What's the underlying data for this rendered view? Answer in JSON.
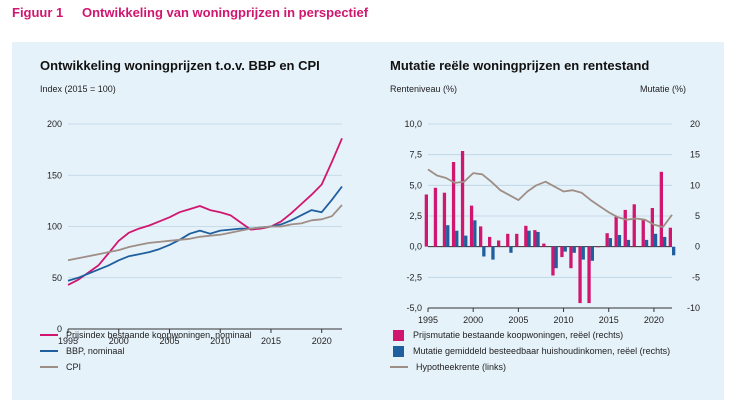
{
  "figure": {
    "number": "Figuur 1",
    "title": "Ontwikkeling van woningprijzen in perspectief"
  },
  "colors": {
    "magenta": "#d0166f",
    "blue": "#1f5f9e",
    "grey": "#9e8e86",
    "panel_bg": "#e6f2fa"
  },
  "chart_data": [
    {
      "type": "line",
      "title": "Ontwikkeling woningprijzen t.o.v. BBP en CPI",
      "ylabel": "Index (2015 = 100)",
      "xlabel": "",
      "xlim": [
        1995,
        2022
      ],
      "ylim": [
        0,
        200
      ],
      "x_ticks": [
        1995,
        2000,
        2005,
        2010,
        2015,
        2020
      ],
      "y_ticks": [
        0,
        50,
        100,
        150,
        200
      ],
      "grid": "horizontal",
      "legend_position": "bottom",
      "x": [
        1995,
        1996,
        1997,
        1998,
        1999,
        2000,
        2001,
        2002,
        2003,
        2004,
        2005,
        2006,
        2007,
        2008,
        2009,
        2010,
        2011,
        2012,
        2013,
        2014,
        2015,
        2016,
        2017,
        2018,
        2019,
        2020,
        2021,
        2022
      ],
      "series": [
        {
          "name": "Prijsindex bestaande koopwoningen, nominaal",
          "color": "#d0166f",
          "values": [
            43,
            48,
            55,
            62,
            74,
            86,
            94,
            98,
            101,
            105,
            109,
            114,
            117,
            120,
            116,
            114,
            111,
            104,
            97,
            98,
            100,
            105,
            113,
            122,
            131,
            141,
            163,
            186
          ]
        },
        {
          "name": "BBP, nominaal",
          "color": "#1f5f9e",
          "values": [
            47,
            50,
            54,
            58,
            62,
            67,
            71,
            73,
            75,
            78,
            82,
            87,
            93,
            96,
            93,
            96,
            97,
            98,
            98,
            99,
            100,
            102,
            106,
            111,
            116,
            114,
            126,
            139
          ]
        },
        {
          "name": "CPI",
          "color": "#9e8e86",
          "values": [
            67,
            69,
            71,
            73,
            75,
            77,
            80,
            82,
            84,
            85,
            86,
            87,
            88,
            90,
            91,
            92,
            94,
            96,
            98,
            99,
            100,
            100,
            102,
            103,
            106,
            107,
            110,
            121
          ]
        }
      ]
    },
    {
      "type": "bar",
      "title": "Mutatie reële woningprijzen en rentestand",
      "ylabel": "Renteniveau (%)",
      "y2label": "Mutatie (%)",
      "xlabel": "",
      "xlim": [
        1995,
        2022
      ],
      "ylim": [
        -5,
        10
      ],
      "y2lim": [
        -10,
        20
      ],
      "x_ticks": [
        1995,
        2000,
        2005,
        2010,
        2015,
        2020
      ],
      "y_ticks": [
        "-5,0",
        "-2,5",
        "0,0",
        "2,5",
        "5,0",
        "7,5",
        "10,0"
      ],
      "y2_ticks": [
        "-10",
        "-5",
        "0",
        "5",
        "10",
        "15",
        "20"
      ],
      "grid": "horizontal",
      "legend_position": "bottom",
      "x": [
        1995,
        1996,
        1997,
        1998,
        1999,
        2000,
        2001,
        2002,
        2003,
        2004,
        2005,
        2006,
        2007,
        2008,
        2009,
        2010,
        2011,
        2012,
        2013,
        2014,
        2015,
        2016,
        2017,
        2018,
        2019,
        2020,
        2021,
        2022
      ],
      "series": [
        {
          "name": "Prijsmutatie bestaande koopwoningen, reëel (rechts)",
          "color": "#d0166f",
          "axis": "right",
          "kind": "bar",
          "values": [
            8.5,
            9.6,
            8.8,
            13.8,
            15.6,
            6.7,
            3.3,
            1.6,
            1.0,
            2.1,
            2.1,
            3.4,
            2.7,
            0.5,
            -4.7,
            -1.7,
            -3.5,
            -9.2,
            -9.2,
            -0.1,
            2.2,
            4.9,
            6.0,
            6.9,
            4.4,
            6.3,
            12.2,
            3.1
          ]
        },
        {
          "name": "Mutatie gemiddeld besteedbaar huishoudinkomen, reëel (rechts)",
          "color": "#1f5f9e",
          "axis": "right",
          "kind": "bar",
          "values": [
            0,
            0,
            3.5,
            2.6,
            1.8,
            4.3,
            -1.6,
            -2.1,
            0,
            -1.0,
            0,
            2.6,
            2.4,
            0,
            -3.5,
            -0.8,
            -1.0,
            -2.1,
            -2.3,
            0,
            1.4,
            1.9,
            1.1,
            0,
            1.1,
            2.1,
            1.6,
            -1.4
          ]
        },
        {
          "name": "Hypotheekrente (links)",
          "color": "#9e8e86",
          "axis": "left",
          "kind": "line",
          "values": [
            6.3,
            5.8,
            5.6,
            5.2,
            5.3,
            6.0,
            5.9,
            5.3,
            4.6,
            4.2,
            3.8,
            4.5,
            5.0,
            5.3,
            4.9,
            4.5,
            4.6,
            4.4,
            3.8,
            3.3,
            2.8,
            2.4,
            2.2,
            2.3,
            2.2,
            1.8,
            1.6,
            2.6
          ]
        }
      ]
    }
  ]
}
